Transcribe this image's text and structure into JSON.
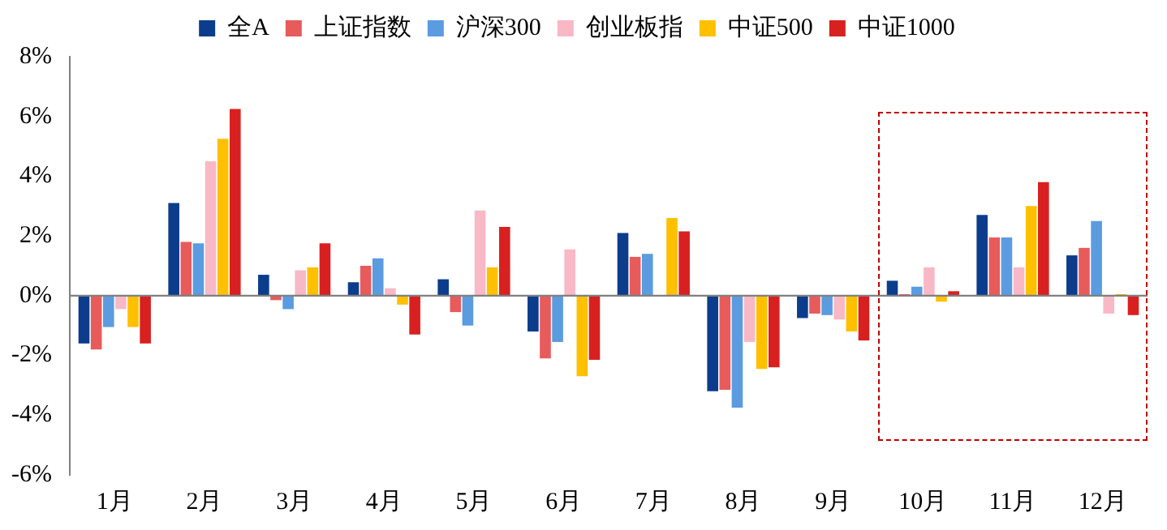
{
  "chart_data": {
    "type": "bar",
    "categories": [
      "1月",
      "2月",
      "3月",
      "4月",
      "5月",
      "6月",
      "7月",
      "8月",
      "9月",
      "10月",
      "11月",
      "12月"
    ],
    "series": [
      {
        "name": "全A",
        "color": "#0b3d8c",
        "values": [
          -1.6,
          3.1,
          0.7,
          0.45,
          0.55,
          -1.2,
          2.1,
          -3.2,
          -0.75,
          0.5,
          2.7,
          1.35
        ]
      },
      {
        "name": "上证指数",
        "color": "#e85b5b",
        "values": [
          -1.8,
          1.8,
          -0.15,
          1.0,
          -0.55,
          -2.1,
          1.3,
          -3.15,
          -0.6,
          0.05,
          1.95,
          1.6
        ]
      },
      {
        "name": "沪深300",
        "color": "#5b9be0",
        "values": [
          -1.05,
          1.75,
          -0.45,
          1.25,
          -1.0,
          -1.55,
          1.4,
          -3.75,
          -0.65,
          0.3,
          1.95,
          2.5
        ]
      },
      {
        "name": "创业板指",
        "color": "#f9b8c6",
        "values": [
          -0.45,
          4.5,
          0.85,
          0.25,
          2.85,
          1.55,
          0,
          -1.55,
          -0.8,
          0.95,
          0.95,
          -0.6
        ]
      },
      {
        "name": "中证500",
        "color": "#ffc000",
        "values": [
          -1.05,
          5.25,
          0.95,
          -0.3,
          0.95,
          -2.7,
          2.6,
          -2.45,
          -1.2,
          -0.2,
          3.0,
          0.05
        ]
      },
      {
        "name": "中证1000",
        "color": "#d92020",
        "values": [
          -1.6,
          6.25,
          1.75,
          -1.3,
          2.3,
          -2.15,
          2.15,
          -2.4,
          -1.5,
          0.15,
          3.8,
          -0.65
        ]
      }
    ],
    "ylim": [
      -6,
      8
    ],
    "yticks": [
      {
        "value": -6,
        "label": "-6%"
      },
      {
        "value": -4,
        "label": "-4%"
      },
      {
        "value": -2,
        "label": "-2%"
      },
      {
        "value": 0,
        "label": "0%"
      },
      {
        "value": 2,
        "label": "2%"
      },
      {
        "value": 4,
        "label": "4%"
      },
      {
        "value": 6,
        "label": "6%"
      },
      {
        "value": 8,
        "label": "8%"
      }
    ],
    "legend": "top"
  }
}
